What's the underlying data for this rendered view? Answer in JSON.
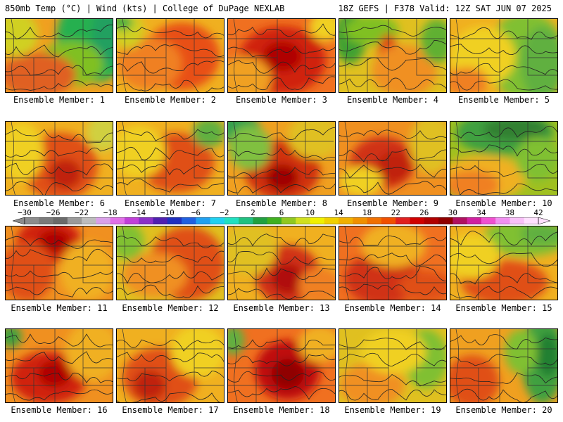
{
  "header": {
    "left": "850mb Temp (°C) | Wind (kts) | College of DuPage NEXLAB",
    "right": "18Z GEFS | F378 Valid: 12Z SAT JUN 07 2025"
  },
  "colorbar": {
    "labels": [
      "−30",
      "−26",
      "−22",
      "−18",
      "−14",
      "−10",
      "−6",
      "−2",
      "2",
      "6",
      "10",
      "14",
      "18",
      "22",
      "26",
      "30",
      "34",
      "38",
      "42"
    ],
    "colors": [
      "#8c8c8c",
      "#7a7a7a",
      "#6a6a6a",
      "#9a9a9a",
      "#bcbcbc",
      "#d9a0e8",
      "#e070e8",
      "#c040d8",
      "#8a30c8",
      "#5020b0",
      "#2030c0",
      "#2060e0",
      "#20a0f0",
      "#20d0f0",
      "#20e0c0",
      "#20c080",
      "#20a040",
      "#40b020",
      "#90c820",
      "#d0e020",
      "#f0f000",
      "#f0d000",
      "#f0b000",
      "#f09000",
      "#f07000",
      "#f05000",
      "#e02020",
      "#d00000",
      "#b00000",
      "#900000",
      "#b01060",
      "#d020a0",
      "#f050d0",
      "#f090f0",
      "#f8c0f8",
      "#ffe0ff"
    ]
  },
  "members": [
    {
      "label": "Ensemble Member: 1",
      "bg": "#f0a020",
      "blobs": [
        [
          "#28b050",
          0.82,
          0.25,
          0.35,
          0.6
        ],
        [
          "#20a060",
          0.95,
          0.2,
          0.15,
          0.4
        ],
        [
          "#80c020",
          0.6,
          0.6,
          0.3,
          0.3
        ],
        [
          "#e06020",
          0.3,
          0.75,
          0.35,
          0.3
        ],
        [
          "#d0d020",
          0.1,
          0.2,
          0.2,
          0.3
        ]
      ]
    },
    {
      "label": "Ensemble Member: 2",
      "bg": "#f0b020",
      "blobs": [
        [
          "#e85018",
          0.6,
          0.5,
          0.35,
          0.45
        ],
        [
          "#f08020",
          0.3,
          0.6,
          0.3,
          0.35
        ],
        [
          "#d0d020",
          0.1,
          0.15,
          0.15,
          0.25
        ],
        [
          "#40b040",
          0.05,
          0.05,
          0.1,
          0.1
        ]
      ]
    },
    {
      "label": "Ensemble Member: 3",
      "bg": "#f07020",
      "blobs": [
        [
          "#d02010",
          0.5,
          0.55,
          0.4,
          0.45
        ],
        [
          "#b00000",
          0.5,
          0.5,
          0.18,
          0.2
        ],
        [
          "#f0a020",
          0.15,
          0.8,
          0.25,
          0.3
        ],
        [
          "#f0d020",
          0.9,
          0.1,
          0.15,
          0.2
        ]
      ]
    },
    {
      "label": "Ensemble Member: 4",
      "bg": "#e0c020",
      "blobs": [
        [
          "#40a030",
          0.1,
          0.25,
          0.15,
          0.35
        ],
        [
          "#80c020",
          0.3,
          0.15,
          0.25,
          0.2
        ],
        [
          "#e04018",
          0.45,
          0.55,
          0.1,
          0.35
        ],
        [
          "#f09020",
          0.6,
          0.7,
          0.3,
          0.35
        ],
        [
          "#60b030",
          0.9,
          0.3,
          0.15,
          0.3
        ]
      ]
    },
    {
      "label": "Ensemble Member: 5",
      "bg": "#f0b020",
      "blobs": [
        [
          "#80c030",
          0.7,
          0.5,
          0.35,
          0.6
        ],
        [
          "#60b040",
          0.85,
          0.6,
          0.2,
          0.5
        ],
        [
          "#f0d020",
          0.3,
          0.5,
          0.3,
          0.4
        ],
        [
          "#f08020",
          0.15,
          0.85,
          0.2,
          0.2
        ]
      ]
    },
    {
      "label": "Ensemble Member: 6",
      "bg": "#f0b020",
      "blobs": [
        [
          "#e05018",
          0.5,
          0.6,
          0.35,
          0.45
        ],
        [
          "#c02010",
          0.55,
          0.7,
          0.15,
          0.2
        ],
        [
          "#f0d020",
          0.15,
          0.4,
          0.2,
          0.4
        ],
        [
          "#d0d040",
          0.9,
          0.15,
          0.15,
          0.25
        ]
      ]
    },
    {
      "label": "Ensemble Member: 7",
      "bg": "#f0b020",
      "blobs": [
        [
          "#e05018",
          0.55,
          0.55,
          0.35,
          0.4
        ],
        [
          "#f0d020",
          0.2,
          0.4,
          0.25,
          0.35
        ],
        [
          "#60b040",
          0.85,
          0.15,
          0.15,
          0.2
        ]
      ]
    },
    {
      "label": "Ensemble Member: 8",
      "bg": "#f0a020",
      "blobs": [
        [
          "#30a050",
          0.1,
          0.1,
          0.2,
          0.2
        ],
        [
          "#d03010",
          0.5,
          0.65,
          0.35,
          0.4
        ],
        [
          "#a00000",
          0.5,
          0.75,
          0.15,
          0.18
        ],
        [
          "#e0c020",
          0.8,
          0.2,
          0.25,
          0.3
        ],
        [
          "#80c040",
          0.2,
          0.35,
          0.2,
          0.3
        ]
      ]
    },
    {
      "label": "Ensemble Member: 9",
      "bg": "#f09020",
      "blobs": [
        [
          "#d03018",
          0.4,
          0.55,
          0.3,
          0.35
        ],
        [
          "#c02010",
          0.5,
          0.6,
          0.15,
          0.2
        ],
        [
          "#e0c020",
          0.85,
          0.3,
          0.2,
          0.4
        ],
        [
          "#f0d020",
          0.2,
          0.8,
          0.2,
          0.2
        ]
      ]
    },
    {
      "label": "Ensemble Member: 10",
      "bg": "#a0c020",
      "blobs": [
        [
          "#40a040",
          0.5,
          0.15,
          0.45,
          0.3
        ],
        [
          "#308030",
          0.6,
          0.1,
          0.3,
          0.15
        ],
        [
          "#f0b020",
          0.3,
          0.75,
          0.4,
          0.3
        ],
        [
          "#f08020",
          0.2,
          0.85,
          0.25,
          0.2
        ],
        [
          "#80c030",
          0.8,
          0.5,
          0.2,
          0.3
        ]
      ]
    },
    {
      "label": "Ensemble Member: 11",
      "bg": "#f09020",
      "blobs": [
        [
          "#d02010",
          0.4,
          0.2,
          0.3,
          0.3
        ],
        [
          "#b00000",
          0.45,
          0.2,
          0.15,
          0.15
        ],
        [
          "#e05018",
          0.2,
          0.6,
          0.25,
          0.4
        ],
        [
          "#f0b020",
          0.75,
          0.6,
          0.25,
          0.4
        ]
      ]
    },
    {
      "label": "Ensemble Member: 12",
      "bg": "#e0c020",
      "blobs": [
        [
          "#e05018",
          0.65,
          0.5,
          0.35,
          0.5
        ],
        [
          "#f09020",
          0.35,
          0.65,
          0.3,
          0.3
        ],
        [
          "#80c030",
          0.1,
          0.2,
          0.15,
          0.25
        ]
      ]
    },
    {
      "label": "Ensemble Member: 13",
      "bg": "#f0b020",
      "blobs": [
        [
          "#d03018",
          0.55,
          0.65,
          0.3,
          0.4
        ],
        [
          "#b01010",
          0.55,
          0.7,
          0.15,
          0.2
        ],
        [
          "#e0c020",
          0.2,
          0.3,
          0.25,
          0.35
        ],
        [
          "#f08020",
          0.85,
          0.8,
          0.2,
          0.25
        ]
      ]
    },
    {
      "label": "Ensemble Member: 14",
      "bg": "#f07020",
      "blobs": [
        [
          "#d03018",
          0.4,
          0.7,
          0.35,
          0.35
        ],
        [
          "#f0b020",
          0.5,
          0.25,
          0.3,
          0.3
        ],
        [
          "#e05018",
          0.8,
          0.8,
          0.25,
          0.2
        ]
      ]
    },
    {
      "label": "Ensemble Member: 15",
      "bg": "#f0b020",
      "blobs": [
        [
          "#80c030",
          0.7,
          0.15,
          0.4,
          0.25
        ],
        [
          "#60b040",
          0.85,
          0.1,
          0.2,
          0.15
        ],
        [
          "#e05018",
          0.5,
          0.75,
          0.4,
          0.3
        ],
        [
          "#f0d020",
          0.2,
          0.4,
          0.25,
          0.3
        ]
      ]
    },
    {
      "label": "Ensemble Member: 16",
      "bg": "#f09020",
      "blobs": [
        [
          "#d02010",
          0.4,
          0.65,
          0.35,
          0.35
        ],
        [
          "#b00000",
          0.45,
          0.6,
          0.15,
          0.18
        ],
        [
          "#40a040",
          0.05,
          0.1,
          0.1,
          0.15
        ],
        [
          "#f0b020",
          0.8,
          0.3,
          0.25,
          0.4
        ]
      ]
    },
    {
      "label": "Ensemble Member: 17",
      "bg": "#f0b020",
      "blobs": [
        [
          "#e05018",
          0.4,
          0.65,
          0.35,
          0.4
        ],
        [
          "#c02010",
          0.3,
          0.75,
          0.15,
          0.2
        ],
        [
          "#f0d020",
          0.75,
          0.3,
          0.25,
          0.35
        ]
      ]
    },
    {
      "label": "Ensemble Member: 18",
      "bg": "#f07020",
      "blobs": [
        [
          "#c01010",
          0.55,
          0.55,
          0.3,
          0.4
        ],
        [
          "#900000",
          0.55,
          0.6,
          0.15,
          0.2
        ],
        [
          "#60b040",
          0.05,
          0.15,
          0.1,
          0.2
        ],
        [
          "#f0b020",
          0.85,
          0.2,
          0.2,
          0.25
        ]
      ]
    },
    {
      "label": "Ensemble Member: 19",
      "bg": "#e0c020",
      "blobs": [
        [
          "#f09020",
          0.3,
          0.75,
          0.3,
          0.3
        ],
        [
          "#80c030",
          0.8,
          0.4,
          0.2,
          0.4
        ],
        [
          "#f0d020",
          0.5,
          0.3,
          0.3,
          0.3
        ]
      ]
    },
    {
      "label": "Ensemble Member: 20",
      "bg": "#f0a020",
      "blobs": [
        [
          "#40a040",
          0.85,
          0.4,
          0.2,
          0.6
        ],
        [
          "#208030",
          0.9,
          0.35,
          0.1,
          0.3
        ],
        [
          "#e05018",
          0.2,
          0.7,
          0.25,
          0.35
        ],
        [
          "#80c030",
          0.65,
          0.3,
          0.15,
          0.3
        ]
      ]
    }
  ]
}
